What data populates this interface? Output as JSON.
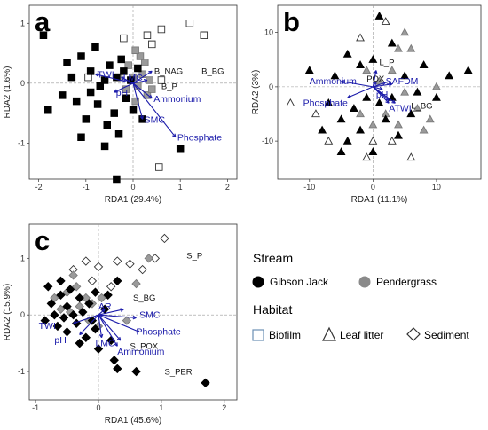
{
  "colors": {
    "gibson_jack": "#000000",
    "pendergrass": "#9a9a9a",
    "arrow": "#1a1aaa",
    "biofilm_legend_stroke": "#6b8fb5"
  },
  "legend": {
    "stream_title": "Stream",
    "stream_items": [
      {
        "label": "Gibson Jack",
        "fill": "#000000"
      },
      {
        "label": "Pendergrass",
        "fill": "#8a8a8a"
      }
    ],
    "habitat_title": "Habitat",
    "habitat_items": [
      {
        "label": "Biofilm",
        "shape": "square"
      },
      {
        "label": "Leaf litter",
        "shape": "triangle"
      },
      {
        "label": "Sediment",
        "shape": "diamond"
      }
    ]
  },
  "chart_data": [
    {
      "panel": "a",
      "type": "scatter",
      "xlabel": "RDA1 (29.4%)",
      "ylabel": "RDA2 (1.6%)",
      "xlim": [
        -2.2,
        2.2
      ],
      "ylim": [
        -1.6,
        1.3
      ],
      "xticks": [
        -2,
        -1,
        0,
        1,
        2
      ],
      "yticks": [
        -1,
        0,
        1
      ],
      "marker": "square",
      "points": [
        {
          "x": -1.9,
          "y": 0.8,
          "s": "gj"
        },
        {
          "x": -1.8,
          "y": -0.45,
          "s": "gj"
        },
        {
          "x": -1.5,
          "y": -0.2,
          "s": "gj"
        },
        {
          "x": -1.3,
          "y": 0.1,
          "s": "gj"
        },
        {
          "x": -1.2,
          "y": -0.3,
          "s": "gj"
        },
        {
          "x": -1.1,
          "y": 0.45,
          "s": "gj"
        },
        {
          "x": -1.0,
          "y": -0.6,
          "s": "gj"
        },
        {
          "x": -0.9,
          "y": 0.2,
          "s": "gj"
        },
        {
          "x": -0.9,
          "y": -0.15,
          "s": "gj"
        },
        {
          "x": -0.8,
          "y": 0.6,
          "s": "gj"
        },
        {
          "x": -0.75,
          "y": -0.35,
          "s": "gj"
        },
        {
          "x": -0.6,
          "y": 0.05,
          "s": "gj"
        },
        {
          "x": -0.55,
          "y": -0.7,
          "s": "gj"
        },
        {
          "x": -0.5,
          "y": 0.3,
          "s": "gj"
        },
        {
          "x": -0.4,
          "y": -0.5,
          "s": "gj"
        },
        {
          "x": -0.35,
          "y": 0.1,
          "s": "gj"
        },
        {
          "x": -0.3,
          "y": -0.85,
          "s": "gj"
        },
        {
          "x": -0.2,
          "y": 0.2,
          "s": "gj"
        },
        {
          "x": -0.15,
          "y": -0.25,
          "s": "gj"
        },
        {
          "x": -0.05,
          "y": 0.05,
          "s": "gj"
        },
        {
          "x": 0.0,
          "y": -0.45,
          "s": "gj"
        },
        {
          "x": 0.1,
          "y": 0.25,
          "s": "gj"
        },
        {
          "x": 0.2,
          "y": -0.6,
          "s": "gj"
        },
        {
          "x": -1.1,
          "y": -0.9,
          "s": "gj"
        },
        {
          "x": -0.6,
          "y": -1.05,
          "s": "gj"
        },
        {
          "x": -0.35,
          "y": -1.6,
          "s": "gj"
        },
        {
          "x": 1.0,
          "y": -1.1,
          "s": "gj"
        },
        {
          "x": -0.7,
          "y": -0.05,
          "s": "gj"
        },
        {
          "x": -1.4,
          "y": 0.35,
          "s": "gj"
        },
        {
          "x": -0.25,
          "y": 0.4,
          "s": "gj"
        },
        {
          "x": -0.3,
          "y": 0.1,
          "s": "pg"
        },
        {
          "x": -0.15,
          "y": -0.1,
          "s": "pg"
        },
        {
          "x": 0.0,
          "y": 0.1,
          "s": "pg"
        },
        {
          "x": 0.1,
          "y": -0.05,
          "s": "pg"
        },
        {
          "x": 0.2,
          "y": 0.15,
          "s": "pg"
        },
        {
          "x": 0.3,
          "y": -0.2,
          "s": "pg"
        },
        {
          "x": -0.1,
          "y": 0.3,
          "s": "pg"
        },
        {
          "x": 0.05,
          "y": -0.3,
          "s": "pg"
        },
        {
          "x": 0.25,
          "y": 0.35,
          "s": "pg"
        },
        {
          "x": 0.35,
          "y": 0.05,
          "s": "pg"
        },
        {
          "x": 0.15,
          "y": 0.45,
          "s": "pg"
        },
        {
          "x": 0.4,
          "y": -0.1,
          "s": "pg"
        },
        {
          "x": 0.05,
          "y": 0.55,
          "s": "pg"
        },
        {
          "x": 1.5,
          "y": 0.8,
          "s": "open"
        },
        {
          "x": 1.2,
          "y": 1.0,
          "s": "open"
        },
        {
          "x": 0.6,
          "y": 0.9,
          "s": "open"
        },
        {
          "x": 0.4,
          "y": 0.65,
          "s": "open"
        },
        {
          "x": -0.2,
          "y": 0.75,
          "s": "open"
        },
        {
          "x": 0.3,
          "y": 0.8,
          "s": "open"
        },
        {
          "x": 0.6,
          "y": 0.05,
          "s": "open"
        },
        {
          "x": 0.55,
          "y": -1.4,
          "s": "open"
        },
        {
          "x": -0.95,
          "y": 0.1,
          "s": "open"
        }
      ],
      "vectors": [
        {
          "label": "TWI",
          "x": -0.8,
          "y": 0.15
        },
        {
          "label": "pH",
          "x": -0.4,
          "y": -0.15
        },
        {
          "label": "LMC",
          "x": -0.25,
          "y": 0.1
        },
        {
          "label": "Ammonium",
          "x": 0.4,
          "y": -0.25
        },
        {
          "label": "SMC",
          "x": 0.2,
          "y": -0.6
        },
        {
          "label": "Phosphate",
          "x": 0.9,
          "y": -0.9
        },
        {
          "label": "B_NAG",
          "x": 0.4,
          "y": 0.2
        },
        {
          "label": "B_P",
          "x": 0.3,
          "y": 0.05
        }
      ],
      "labels": [
        {
          "text": "B_NAG",
          "x": 0.45,
          "y": 0.15
        },
        {
          "text": "B_P",
          "x": 0.6,
          "y": -0.1
        },
        {
          "text": "B_BG",
          "x": 1.45,
          "y": 0.15
        }
      ]
    },
    {
      "panel": "b",
      "type": "scatter",
      "xlabel": "RDA1 (11.1%)",
      "ylabel": "RDA2 (3%)",
      "xlim": [
        -15,
        17
      ],
      "ylim": [
        -17,
        15
      ],
      "xticks": [
        -10,
        0,
        10
      ],
      "yticks": [
        -10,
        0,
        10
      ],
      "marker": "triangle",
      "points": [
        {
          "x": -4,
          "y": 6,
          "s": "gj"
        },
        {
          "x": -2,
          "y": 4,
          "s": "gj"
        },
        {
          "x": 0,
          "y": 5,
          "s": "gj"
        },
        {
          "x": 1,
          "y": 13,
          "s": "gj"
        },
        {
          "x": 3,
          "y": 8,
          "s": "gj"
        },
        {
          "x": 5,
          "y": 2,
          "s": "gj"
        },
        {
          "x": 7,
          "y": -1,
          "s": "gj"
        },
        {
          "x": 10,
          "y": -2,
          "s": "gj"
        },
        {
          "x": 12,
          "y": 2,
          "s": "gj"
        },
        {
          "x": 15,
          "y": 3,
          "s": "gj"
        },
        {
          "x": -6,
          "y": 2,
          "s": "gj"
        },
        {
          "x": -7,
          "y": -3,
          "s": "gj"
        },
        {
          "x": -5,
          "y": -6,
          "s": "gj"
        },
        {
          "x": -4,
          "y": -10,
          "s": "gj"
        },
        {
          "x": -2,
          "y": -8,
          "s": "gj"
        },
        {
          "x": 0,
          "y": -12,
          "s": "gj"
        },
        {
          "x": 2,
          "y": -6,
          "s": "gj"
        },
        {
          "x": 4,
          "y": -9,
          "s": "gj"
        },
        {
          "x": -8,
          "y": -8,
          "s": "gj"
        },
        {
          "x": -3,
          "y": -4,
          "s": "gj"
        },
        {
          "x": -1,
          "y": -2,
          "s": "gj"
        },
        {
          "x": 6,
          "y": -5,
          "s": "gj"
        },
        {
          "x": 8,
          "y": 4,
          "s": "gj"
        },
        {
          "x": -10,
          "y": 3,
          "s": "gj"
        },
        {
          "x": 1,
          "y": -3,
          "s": "gj"
        },
        {
          "x": -5,
          "y": -12,
          "s": "gj"
        },
        {
          "x": 3,
          "y": -2,
          "s": "gj"
        },
        {
          "x": -1,
          "y": 3,
          "s": "pg"
        },
        {
          "x": 1,
          "y": 1,
          "s": "pg"
        },
        {
          "x": 3,
          "y": 3,
          "s": "pg"
        },
        {
          "x": 5,
          "y": -1,
          "s": "pg"
        },
        {
          "x": 7,
          "y": -4,
          "s": "pg"
        },
        {
          "x": 9,
          "y": -6,
          "s": "pg"
        },
        {
          "x": 4,
          "y": 7,
          "s": "pg"
        },
        {
          "x": 5,
          "y": 10,
          "s": "pg"
        },
        {
          "x": 6,
          "y": 7,
          "s": "pg"
        },
        {
          "x": 2,
          "y": -5,
          "s": "pg"
        },
        {
          "x": 0,
          "y": -7,
          "s": "pg"
        },
        {
          "x": -2,
          "y": -5,
          "s": "pg"
        },
        {
          "x": 8,
          "y": -8,
          "s": "pg"
        },
        {
          "x": 10,
          "y": 0,
          "s": "pg"
        },
        {
          "x": 4,
          "y": -7,
          "s": "pg"
        },
        {
          "x": 2,
          "y": 12,
          "s": "open"
        },
        {
          "x": -13,
          "y": -3,
          "s": "open"
        },
        {
          "x": -9,
          "y": -5,
          "s": "open"
        },
        {
          "x": -7,
          "y": -10,
          "s": "open"
        },
        {
          "x": -2,
          "y": 9,
          "s": "open"
        },
        {
          "x": 0,
          "y": -10,
          "s": "open"
        },
        {
          "x": 3,
          "y": -10,
          "s": "open"
        },
        {
          "x": 6,
          "y": -13,
          "s": "open"
        },
        {
          "x": -1,
          "y": -13,
          "s": "open"
        }
      ],
      "vectors": [
        {
          "label": "Ammonium",
          "x": -5,
          "y": 1
        },
        {
          "label": "Phosphate",
          "x": -4,
          "y": -2
        },
        {
          "label": "pH",
          "x": 1.5,
          "y": -0.5
        },
        {
          "label": "AFDM",
          "x": 3,
          "y": 0.5
        },
        {
          "label": "TWI",
          "x": 3.5,
          "y": -3
        },
        {
          "label": "SA",
          "x": 2,
          "y": 0.8
        },
        {
          "label": "AR",
          "x": 2.5,
          "y": -2.5
        },
        {
          "label": "L_P",
          "x": 0.5,
          "y": 3
        },
        {
          "label": "POX",
          "x": 0.5,
          "y": 1
        },
        {
          "label": "L_BG",
          "x": 2.5,
          "y": -3
        }
      ],
      "labels": [
        {
          "text": "L_P",
          "x": 1,
          "y": 4
        },
        {
          "text": "POX",
          "x": -1,
          "y": 1
        },
        {
          "text": "SAFDM",
          "x": 2,
          "y": 0.5
        },
        {
          "text": "L_BG",
          "x": 6,
          "y": -4
        },
        {
          "text": "Ammonium",
          "x": -10,
          "y": 0.5
        },
        {
          "text": "Phosphate",
          "x": -11,
          "y": -3.5
        },
        {
          "text": "pH",
          "x": 0.5,
          "y": -2
        },
        {
          "text": "ATWI",
          "x": 2.5,
          "y": -4.5
        }
      ]
    },
    {
      "panel": "c",
      "type": "scatter",
      "xlabel": "RDA1 (45.6%)",
      "ylabel": "RDA2 (15.9%)",
      "xlim": [
        -1.1,
        2.2
      ],
      "ylim": [
        -1.5,
        1.6
      ],
      "xticks": [
        -1,
        0,
        1,
        2
      ],
      "yticks": [
        -1,
        0,
        1
      ],
      "marker": "diamond",
      "points": [
        {
          "x": -0.8,
          "y": 0.5,
          "s": "gj"
        },
        {
          "x": -0.75,
          "y": 0.2,
          "s": "gj"
        },
        {
          "x": -0.7,
          "y": 0.0,
          "s": "gj"
        },
        {
          "x": -0.65,
          "y": -0.2,
          "s": "gj"
        },
        {
          "x": -0.6,
          "y": 0.35,
          "s": "gj"
        },
        {
          "x": -0.55,
          "y": -0.05,
          "s": "gj"
        },
        {
          "x": -0.5,
          "y": 0.15,
          "s": "gj"
        },
        {
          "x": -0.5,
          "y": -0.3,
          "s": "gj"
        },
        {
          "x": -0.45,
          "y": 0.45,
          "s": "gj"
        },
        {
          "x": -0.4,
          "y": 0.0,
          "s": "gj"
        },
        {
          "x": -0.35,
          "y": -0.15,
          "s": "gj"
        },
        {
          "x": -0.3,
          "y": 0.3,
          "s": "gj"
        },
        {
          "x": -0.25,
          "y": 0.05,
          "s": "gj"
        },
        {
          "x": -0.2,
          "y": -0.4,
          "s": "gj"
        },
        {
          "x": -0.15,
          "y": 0.2,
          "s": "gj"
        },
        {
          "x": -0.1,
          "y": -0.1,
          "s": "gj"
        },
        {
          "x": -0.05,
          "y": 0.4,
          "s": "gj"
        },
        {
          "x": 0.0,
          "y": -0.6,
          "s": "gj"
        },
        {
          "x": 0.1,
          "y": 0.1,
          "s": "gj"
        },
        {
          "x": 0.2,
          "y": -0.45,
          "s": "gj"
        },
        {
          "x": 0.3,
          "y": 0.6,
          "s": "gj"
        },
        {
          "x": 0.3,
          "y": -0.95,
          "s": "gj"
        },
        {
          "x": 0.6,
          "y": -1.0,
          "s": "gj"
        },
        {
          "x": 1.7,
          "y": -1.2,
          "s": "gj"
        },
        {
          "x": -0.85,
          "y": -0.1,
          "s": "gj"
        },
        {
          "x": -0.3,
          "y": -0.5,
          "s": "gj"
        },
        {
          "x": 0.15,
          "y": 0.35,
          "s": "gj"
        },
        {
          "x": -0.6,
          "y": 0.6,
          "s": "gj"
        },
        {
          "x": 0.25,
          "y": -0.8,
          "s": "gj"
        },
        {
          "x": -0.05,
          "y": -0.25,
          "s": "gj"
        },
        {
          "x": -0.7,
          "y": 0.3,
          "s": "pg"
        },
        {
          "x": -0.6,
          "y": 0.1,
          "s": "pg"
        },
        {
          "x": -0.5,
          "y": 0.4,
          "s": "pg"
        },
        {
          "x": -0.45,
          "y": 0.05,
          "s": "pg"
        },
        {
          "x": -0.35,
          "y": 0.5,
          "s": "pg"
        },
        {
          "x": -0.3,
          "y": 0.15,
          "s": "pg"
        },
        {
          "x": -0.2,
          "y": 0.3,
          "s": "pg"
        },
        {
          "x": -0.15,
          "y": -0.1,
          "s": "pg"
        },
        {
          "x": -0.1,
          "y": 0.2,
          "s": "pg"
        },
        {
          "x": 0.0,
          "y": -0.2,
          "s": "pg"
        },
        {
          "x": 0.05,
          "y": 0.3,
          "s": "pg"
        },
        {
          "x": 0.45,
          "y": -0.1,
          "s": "pg"
        },
        {
          "x": 0.6,
          "y": 0.55,
          "s": "pg"
        },
        {
          "x": 0.8,
          "y": 1.0,
          "s": "pg"
        },
        {
          "x": -0.4,
          "y": 0.7,
          "s": "pg"
        },
        {
          "x": 1.05,
          "y": 1.35,
          "s": "open"
        },
        {
          "x": 0.9,
          "y": 1.0,
          "s": "open"
        },
        {
          "x": 0.7,
          "y": 0.8,
          "s": "open"
        },
        {
          "x": 0.5,
          "y": 0.9,
          "s": "open"
        },
        {
          "x": 0.3,
          "y": 0.95,
          "s": "open"
        },
        {
          "x": 0.0,
          "y": 0.85,
          "s": "open"
        },
        {
          "x": -0.2,
          "y": 0.95,
          "s": "open"
        },
        {
          "x": -0.4,
          "y": 0.8,
          "s": "open"
        },
        {
          "x": -0.1,
          "y": 0.6,
          "s": "open"
        },
        {
          "x": 0.2,
          "y": 0.5,
          "s": "open"
        }
      ],
      "vectors": [
        {
          "label": "TWI",
          "x": -0.4,
          "y": -0.15
        },
        {
          "label": "pH",
          "x": -0.3,
          "y": -0.35
        },
        {
          "label": "LMC",
          "x": 0.05,
          "y": -0.4
        },
        {
          "label": "Ammonium",
          "x": 0.3,
          "y": -0.55
        },
        {
          "label": "SMC",
          "x": 0.6,
          "y": -0.05
        },
        {
          "label": "Phosphate",
          "x": 0.65,
          "y": -0.3
        },
        {
          "label": "S_BG",
          "x": 0.4,
          "y": 0.1
        },
        {
          "label": "S_POX",
          "x": 0.35,
          "y": -0.45
        },
        {
          "label": "AR",
          "x": 0.1,
          "y": 0.1
        }
      ],
      "labels": [
        {
          "text": "S_P",
          "x": 1.4,
          "y": 1.0
        },
        {
          "text": "S_BG",
          "x": 0.55,
          "y": 0.25
        },
        {
          "text": "S_POX",
          "x": 0.5,
          "y": -0.6
        },
        {
          "text": "S_PER",
          "x": 1.05,
          "y": -1.05
        },
        {
          "text": "AR",
          "x": 0.0,
          "y": 0.1
        },
        {
          "text": "SMC",
          "x": 0.65,
          "y": -0.05
        },
        {
          "text": "Phosphate",
          "x": 0.6,
          "y": -0.35
        },
        {
          "text": "Ammonium",
          "x": 0.3,
          "y": -0.7
        },
        {
          "text": "LMC",
          "x": -0.05,
          "y": -0.55
        },
        {
          "text": "TWI",
          "x": -0.95,
          "y": -0.25
        },
        {
          "text": "pH",
          "x": -0.7,
          "y": -0.5
        }
      ]
    }
  ]
}
